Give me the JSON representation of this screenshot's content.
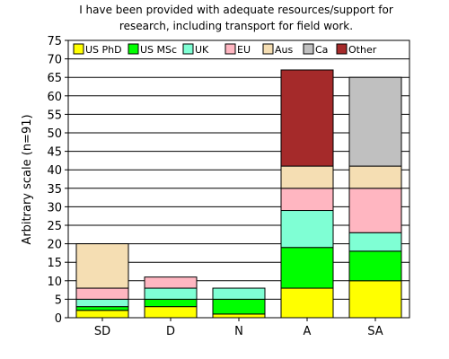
{
  "chart_data": {
    "type": "bar",
    "stacked": true,
    "title": [
      "I have been provided with adequate resources/support for",
      "research, including transport for field work."
    ],
    "xlabel": "",
    "ylabel": "Arbitrary scale (n=91)",
    "ylim": [
      0,
      75
    ],
    "yticks": [
      0,
      5,
      10,
      15,
      20,
      25,
      30,
      35,
      40,
      45,
      50,
      55,
      60,
      65,
      70,
      75
    ],
    "grid": true,
    "legend_position": "top",
    "categories": [
      "SD",
      "D",
      "N",
      "A",
      "SA"
    ],
    "series": [
      {
        "name": "US PhD",
        "color": "#ffff00",
        "values": [
          2,
          3,
          1,
          8,
          10
        ]
      },
      {
        "name": "US MSc",
        "color": "#00ff00",
        "values": [
          1,
          2,
          4,
          11,
          8
        ]
      },
      {
        "name": "UK",
        "color": "#7fffd4",
        "values": [
          2,
          3,
          3,
          10,
          5
        ]
      },
      {
        "name": "EU",
        "color": "#ffb6c1",
        "values": [
          3,
          3,
          0,
          6,
          12
        ]
      },
      {
        "name": "Aus",
        "color": "#f5deb3",
        "values": [
          12,
          0,
          0,
          6,
          6
        ]
      },
      {
        "name": "Ca",
        "color": "#c0c0c0",
        "values": [
          0,
          0,
          0,
          0,
          24
        ]
      },
      {
        "name": "Other",
        "color": "#a52a2a",
        "values": [
          0,
          0,
          0,
          26,
          0
        ]
      }
    ]
  }
}
